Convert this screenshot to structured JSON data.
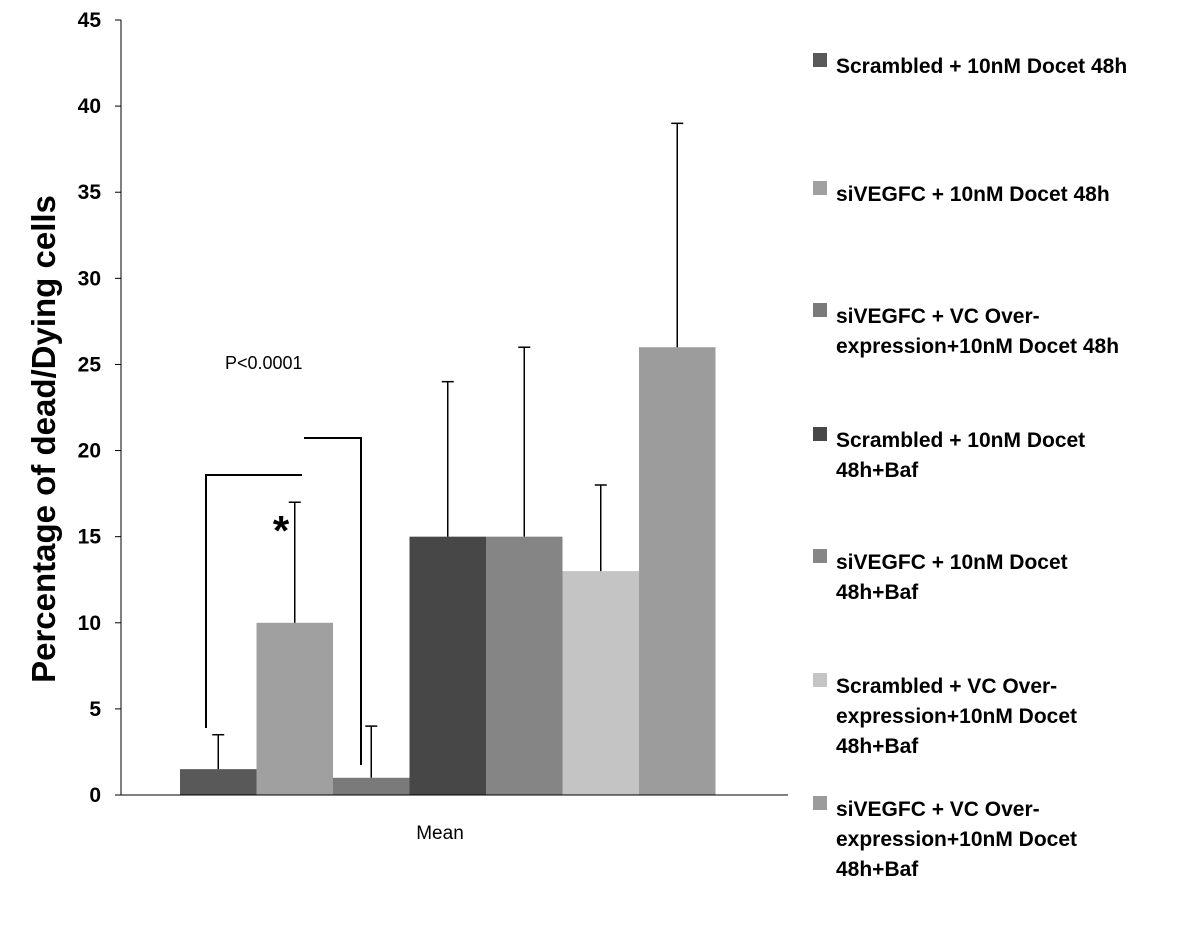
{
  "chart_data": {
    "type": "bar",
    "categories": [
      "Mean"
    ],
    "ylabel": "Percentage of dead/Dying cells",
    "xlabel": "",
    "ylim": [
      0,
      45
    ],
    "yticks": [
      0,
      5,
      10,
      15,
      20,
      25,
      30,
      35,
      40,
      45
    ],
    "grid": false,
    "legend_position": "right",
    "series": [
      {
        "name": "Scrambled + 10nM Docet 48h",
        "legend_lines": [
          "Scrambled + 10nM Docet 48h"
        ],
        "values": [
          1.5
        ],
        "error": [
          2.0
        ],
        "color": "#595959"
      },
      {
        "name": "siVEGFC + 10nM Docet 48h",
        "legend_lines": [
          "siVEGFC + 10nM Docet 48h"
        ],
        "values": [
          10
        ],
        "error": [
          7.0
        ],
        "color": "#a0a0a0"
      },
      {
        "name": "siVEGFC + VC Over-expression+10nM Docet 48h",
        "legend_lines": [
          "siVEGFC + VC Over-",
          "expression+10nM Docet 48h"
        ],
        "values": [
          1
        ],
        "error": [
          3.0
        ],
        "color": "#7a7a7a"
      },
      {
        "name": "Scrambled + 10nM Docet 48h+Baf",
        "legend_lines": [
          "Scrambled + 10nM Docet",
          "48h+Baf"
        ],
        "values": [
          15
        ],
        "error": [
          9.0
        ],
        "color": "#474747"
      },
      {
        "name": "siVEGFC + 10nM Docet 48h+Baf",
        "legend_lines": [
          "siVEGFC + 10nM Docet",
          "48h+Baf"
        ],
        "values": [
          15
        ],
        "error": [
          11.0
        ],
        "color": "#858585"
      },
      {
        "name": "Scrambled + VC Over-expression+10nM Docet 48h+Baf",
        "legend_lines": [
          "Scrambled + VC Over-",
          "expression+10nM Docet",
          "48h+Baf"
        ],
        "values": [
          13
        ],
        "error": [
          5.0
        ],
        "color": "#c4c4c4"
      },
      {
        "name": "siVEGFC + VC Over-expression+10nM Docet 48h+Baf",
        "legend_lines": [
          "siVEGFC + VC Over-",
          "expression+10nM Docet",
          "48h+Baf"
        ],
        "values": [
          26
        ],
        "error": [
          13.0
        ],
        "color": "#9c9c9c"
      }
    ],
    "annotations": {
      "p_value": "P<0.0001",
      "significance": "*"
    }
  }
}
